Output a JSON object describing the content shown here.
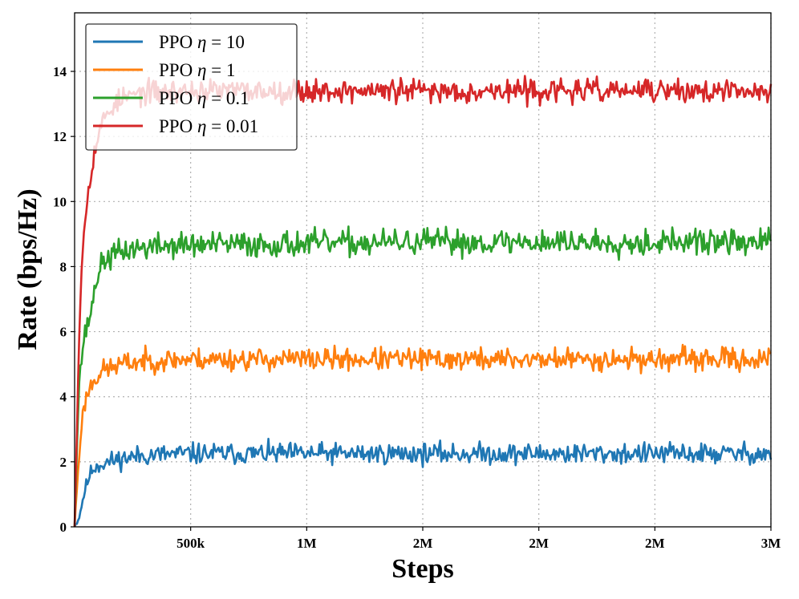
{
  "chart_data": {
    "type": "line",
    "title": "",
    "xlabel": "Steps",
    "ylabel": "Rate (bps/Hz)",
    "xlim": [
      0,
      3000000
    ],
    "ylim": [
      0,
      15.8
    ],
    "grid": true,
    "legend_position": "top-left",
    "x_ticks": [
      {
        "value": 500000,
        "label": "500k"
      },
      {
        "value": 1000000,
        "label": "1M"
      },
      {
        "value": 1500000,
        "label": "2M"
      },
      {
        "value": 2000000,
        "label": "2M"
      },
      {
        "value": 2500000,
        "label": "2M"
      },
      {
        "value": 3000000,
        "label": "3M"
      }
    ],
    "y_ticks": [
      {
        "value": 0,
        "label": "0"
      },
      {
        "value": 2,
        "label": "2"
      },
      {
        "value": 4,
        "label": "4"
      },
      {
        "value": 6,
        "label": "6"
      },
      {
        "value": 8,
        "label": "8"
      },
      {
        "value": 10,
        "label": "10"
      },
      {
        "value": 12,
        "label": "12"
      },
      {
        "value": 14,
        "label": "14"
      }
    ],
    "series": [
      {
        "name": "PPO η = 10",
        "legend_prefix": "PPO ",
        "legend_symbol": "η",
        "legend_suffix": " = 10",
        "color": "#1f77b4",
        "x": [
          0,
          20000,
          40000,
          60000,
          80000,
          100000,
          150000,
          200000,
          300000,
          500000,
          1000000,
          1500000,
          2000000,
          2500000,
          3000000
        ],
        "values": [
          0,
          0.3,
          1.0,
          1.5,
          1.8,
          1.9,
          2.0,
          2.1,
          2.2,
          2.25,
          2.25,
          2.25,
          2.25,
          2.25,
          2.25
        ],
        "noise": 0.16,
        "seed": 11
      },
      {
        "name": "PPO η = 1",
        "legend_prefix": "PPO ",
        "legend_symbol": "η",
        "legend_suffix": " = 1",
        "color": "#ff7f0e",
        "x": [
          0,
          10000,
          30000,
          50000,
          80000,
          120000,
          200000,
          300000,
          500000,
          1000000,
          1500000,
          2000000,
          2500000,
          3000000
        ],
        "values": [
          0,
          1.2,
          3.2,
          4.0,
          4.5,
          4.8,
          5.0,
          5.1,
          5.15,
          5.15,
          5.15,
          5.15,
          5.15,
          5.15
        ],
        "noise": 0.17,
        "seed": 23
      },
      {
        "name": "PPO η = 0.1",
        "legend_prefix": "PPO ",
        "legend_symbol": "η",
        "legend_suffix": " = 0.1",
        "color": "#2ca02c",
        "x": [
          0,
          10000,
          20000,
          40000,
          60000,
          80000,
          100000,
          130000,
          180000,
          250000,
          400000,
          1000000,
          1500000,
          2000000,
          2500000,
          3000000
        ],
        "values": [
          0,
          2.5,
          4.5,
          5.8,
          6.3,
          7.0,
          7.8,
          8.2,
          8.4,
          8.55,
          8.65,
          8.7,
          8.75,
          8.75,
          8.75,
          8.75
        ],
        "noise": 0.2,
        "seed": 37
      },
      {
        "name": "PPO η = 0.01",
        "legend_prefix": "PPO ",
        "legend_symbol": "η",
        "legend_suffix": " = 0.01",
        "color": "#d62728",
        "x": [
          0,
          10000,
          20000,
          30000,
          40000,
          60000,
          80000,
          100000,
          130000,
          170000,
          220000,
          300000,
          500000,
          1000000,
          1500000,
          2000000,
          2500000,
          3000000
        ],
        "values": [
          0,
          3.0,
          6.0,
          8.0,
          9.0,
          10.5,
          11.3,
          12.0,
          12.6,
          13.0,
          13.2,
          13.35,
          13.4,
          13.4,
          13.4,
          13.4,
          13.4,
          13.35
        ],
        "noise": 0.18,
        "seed": 53
      }
    ]
  }
}
